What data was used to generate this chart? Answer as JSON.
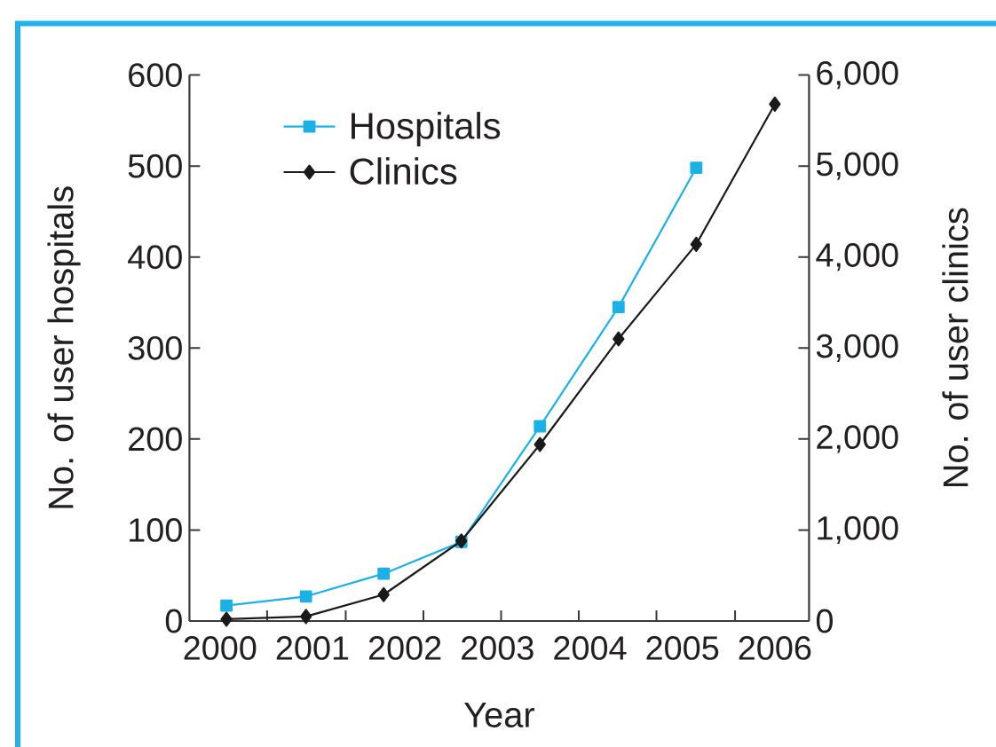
{
  "chart_data": {
    "type": "line",
    "xlabel": "Year",
    "ylabel": "No. of user hospitals",
    "y2label": "No. of user clinics",
    "xlim": [
      1999.67,
      2006.37
    ],
    "xticks": [
      2000,
      {
        "value": 2000.51,
        "label": null
      },
      2001,
      {
        "value": 2001.36,
        "label": null
      },
      2002,
      {
        "value": 2002.2,
        "label": null
      },
      2003,
      {
        "value": 2003.04,
        "label": null
      },
      {
        "value": 2003.88,
        "label": null
      },
      2004,
      {
        "value": 2004.72,
        "label": null
      },
      2005,
      {
        "value": 2005.57,
        "label": null
      },
      2006
    ],
    "ylim": [
      0,
      600
    ],
    "yticks": [
      0,
      100,
      200,
      300,
      400,
      500,
      600
    ],
    "y2lim": [
      0,
      6000
    ],
    "y2ticks": [
      0,
      {
        "value": 1000,
        "label": "1,000"
      },
      {
        "value": 2000,
        "label": "2,000"
      },
      {
        "value": 3000,
        "label": "3,000"
      },
      {
        "value": 4000,
        "label": "4,000"
      },
      {
        "value": 5000,
        "label": "5,000"
      },
      {
        "value": 6000,
        "label": "6,000"
      }
    ],
    "series": [
      {
        "name": "Hospitals",
        "color": "#1bb1e7",
        "marker": "square",
        "x": [
          2000.07,
          2000.93,
          2001.77,
          2002.61,
          2003.46,
          2004.31,
          2005.15
        ],
        "values": [
          17,
          27,
          52,
          87,
          214,
          345,
          498
        ]
      },
      {
        "name": "Clinics",
        "color": "#1a1a1a",
        "marker": "diamond",
        "axis": "y2",
        "x": [
          2000.07,
          2000.93,
          2001.77,
          2002.61,
          2003.46,
          2004.31,
          2005.15,
          2006
        ],
        "values": [
          20,
          50,
          290,
          880,
          1940,
          3100,
          4140,
          5680
        ]
      }
    ],
    "legend": "top left"
  }
}
